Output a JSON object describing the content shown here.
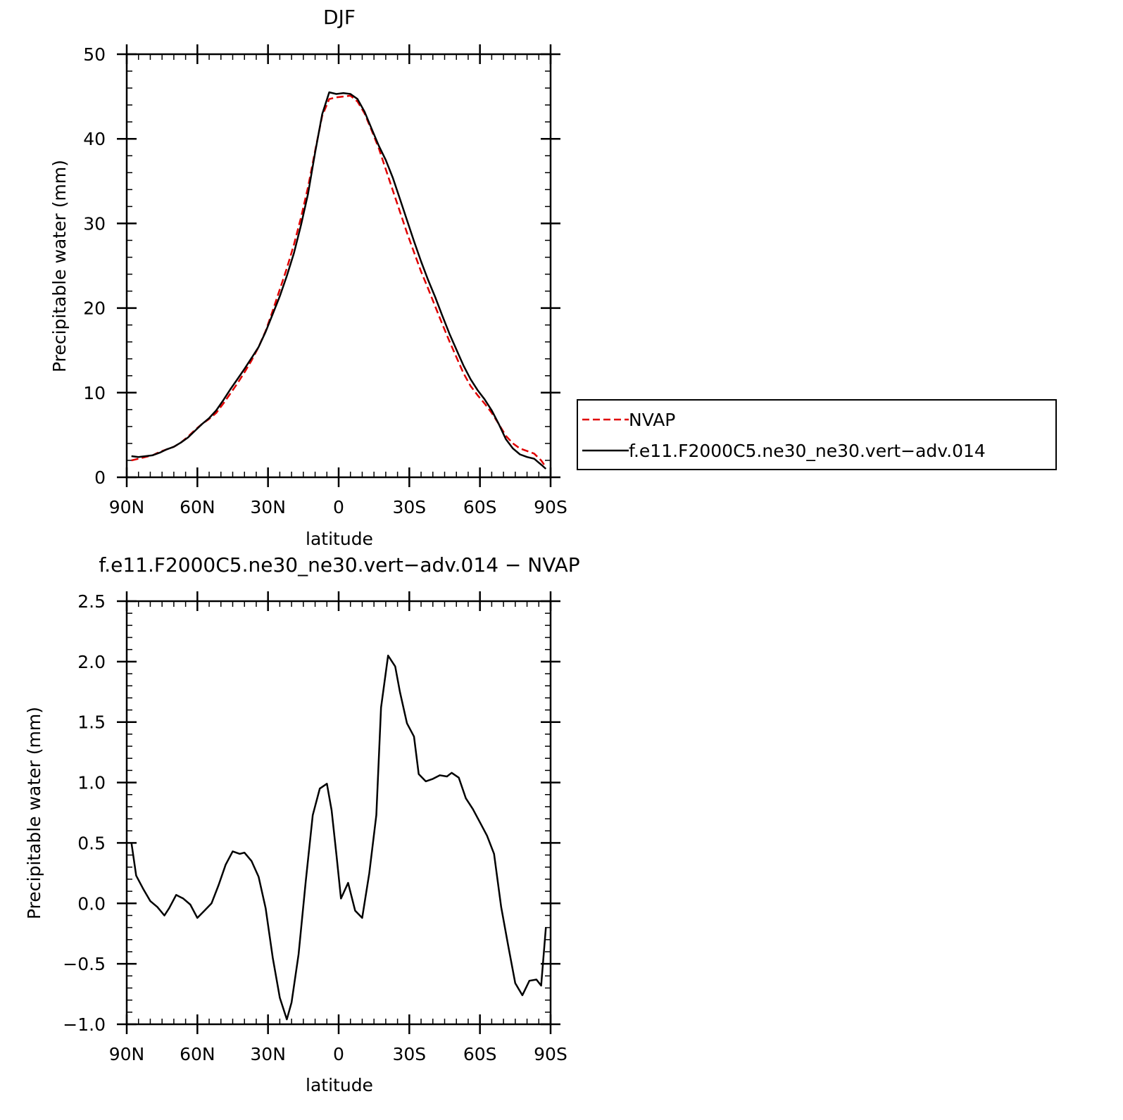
{
  "chart_data": [
    {
      "type": "line",
      "title": "DJF",
      "xlabel": "latitude",
      "ylabel": "Precipitable water (mm)",
      "xlim": [
        -90,
        90
      ],
      "ylim": [
        0,
        50
      ],
      "x_ticks": [
        {
          "value": -90,
          "label": "90N"
        },
        {
          "value": -60,
          "label": "60N"
        },
        {
          "value": -30,
          "label": "30N"
        },
        {
          "value": 0,
          "label": "0"
        },
        {
          "value": 30,
          "label": "30S"
        },
        {
          "value": 60,
          "label": "60S"
        },
        {
          "value": 90,
          "label": "90S"
        }
      ],
      "y_ticks": [
        {
          "value": 0,
          "label": "0"
        },
        {
          "value": 10,
          "label": "10"
        },
        {
          "value": 20,
          "label": "20"
        },
        {
          "value": 30,
          "label": "30"
        },
        {
          "value": 40,
          "label": "40"
        },
        {
          "value": 50,
          "label": "50"
        }
      ],
      "legend": "right",
      "series": [
        {
          "name": "NVAP",
          "color": "#e00000",
          "dash": "dashed",
          "x": [
            -88,
            -85,
            -82,
            -79,
            -76,
            -73,
            -70,
            -67,
            -64,
            -61,
            -58,
            -55,
            -52,
            -49,
            -46,
            -43,
            -40,
            -37,
            -34,
            -31,
            -28,
            -25,
            -22,
            -19,
            -16,
            -13,
            -10,
            -7,
            -4,
            -1,
            2,
            5,
            8,
            11,
            14,
            17,
            20,
            23,
            26,
            29,
            32,
            35,
            38,
            41,
            44,
            47,
            50,
            53,
            56,
            59,
            62,
            65,
            68,
            71,
            74,
            77,
            80,
            83,
            86,
            88
          ],
          "values": [
            2.0,
            2.2,
            2.4,
            2.6,
            3.0,
            3.3,
            3.6,
            4.1,
            4.8,
            5.6,
            6.3,
            6.9,
            7.6,
            8.7,
            9.9,
            11.1,
            12.4,
            13.8,
            15.4,
            17.3,
            19.7,
            22.2,
            24.7,
            27.5,
            30.7,
            34.3,
            38.6,
            42.7,
            44.7,
            44.9,
            45.0,
            45.1,
            44.4,
            43.0,
            41.0,
            38.9,
            36.4,
            33.9,
            31.4,
            28.9,
            26.6,
            24.3,
            22.3,
            20.2,
            18.1,
            16.1,
            14.2,
            12.3,
            10.8,
            9.7,
            8.7,
            7.6,
            6.3,
            4.9,
            4.0,
            3.4,
            3.1,
            2.8,
            2.0,
            1.2
          ]
        },
        {
          "name": "f.e11.F2000C5.ne30_ne30.vert−adv.014",
          "color": "#000000",
          "dash": "solid",
          "x": [
            -88,
            -85,
            -82,
            -79,
            -76,
            -73,
            -70,
            -67,
            -64,
            -61,
            -58,
            -55,
            -52,
            -49,
            -46,
            -43,
            -40,
            -37,
            -34,
            -31,
            -28,
            -25,
            -22,
            -19,
            -16,
            -13,
            -10,
            -7,
            -4,
            -1,
            2,
            5,
            8,
            11,
            14,
            17,
            20,
            23,
            26,
            29,
            32,
            35,
            38,
            41,
            44,
            47,
            50,
            53,
            56,
            59,
            62,
            65,
            68,
            71,
            74,
            77,
            80,
            83,
            86,
            88
          ],
          "values": [
            2.5,
            2.4,
            2.5,
            2.6,
            2.9,
            3.3,
            3.6,
            4.1,
            4.7,
            5.5,
            6.3,
            7.0,
            7.9,
            9.1,
            10.4,
            11.6,
            12.8,
            14.1,
            15.4,
            17.2,
            19.3,
            21.4,
            23.8,
            26.5,
            29.8,
            33.5,
            38.4,
            42.9,
            45.5,
            45.3,
            45.4,
            45.3,
            44.7,
            43.2,
            41.2,
            39.2,
            37.5,
            35.4,
            32.9,
            30.4,
            27.9,
            25.5,
            23.3,
            21.3,
            19.1,
            17.0,
            15.1,
            13.2,
            11.6,
            10.3,
            9.2,
            7.9,
            6.3,
            4.5,
            3.4,
            2.7,
            2.4,
            2.2,
            1.5,
            1.0
          ]
        }
      ]
    },
    {
      "type": "line",
      "title": "f.e11.F2000C5.ne30_ne30.vert−adv.014 − NVAP",
      "xlabel": "latitude",
      "ylabel": "Precipitable water (mm)",
      "xlim": [
        -90,
        90
      ],
      "ylim": [
        -1.0,
        2.5
      ],
      "x_ticks": [
        {
          "value": -90,
          "label": "90N"
        },
        {
          "value": -60,
          "label": "60N"
        },
        {
          "value": -30,
          "label": "30N"
        },
        {
          "value": 0,
          "label": "0"
        },
        {
          "value": 30,
          "label": "30S"
        },
        {
          "value": 60,
          "label": "60S"
        },
        {
          "value": 90,
          "label": "90S"
        }
      ],
      "y_ticks": [
        {
          "value": -1.0,
          "label": "−1.0"
        },
        {
          "value": -0.5,
          "label": "−0.5"
        },
        {
          "value": 0.0,
          "label": "0.0"
        },
        {
          "value": 0.5,
          "label": "0.5"
        },
        {
          "value": 1.0,
          "label": "1.0"
        },
        {
          "value": 1.5,
          "label": "1.5"
        },
        {
          "value": 2.0,
          "label": "2.0"
        },
        {
          "value": 2.5,
          "label": "2.5"
        }
      ],
      "series": [
        {
          "color": "#000000",
          "dash": "solid",
          "x": [
            -88,
            -86,
            -83,
            -80,
            -77,
            -74,
            -72,
            -69,
            -66,
            -63,
            -60,
            -57,
            -54,
            -51,
            -48,
            -45,
            -42,
            -40,
            -37,
            -34,
            -31,
            -28,
            -25,
            -22,
            -20,
            -17,
            -14,
            -11,
            -8,
            -5,
            -3,
            -1,
            1,
            4,
            7,
            10,
            13,
            16,
            18,
            21,
            24,
            26,
            29,
            32,
            34,
            37,
            40,
            43,
            46,
            48,
            51,
            54,
            57,
            60,
            63,
            66,
            69,
            72,
            75,
            78,
            81,
            84,
            86,
            88
          ],
          "values": [
            0.5,
            0.23,
            0.12,
            0.02,
            -0.03,
            -0.1,
            -0.04,
            0.07,
            0.04,
            -0.01,
            -0.12,
            -0.06,
            0.0,
            0.15,
            0.32,
            0.43,
            0.41,
            0.42,
            0.35,
            0.22,
            -0.04,
            -0.45,
            -0.78,
            -0.96,
            -0.82,
            -0.42,
            0.18,
            0.73,
            0.95,
            0.99,
            0.77,
            0.41,
            0.04,
            0.17,
            -0.06,
            -0.12,
            0.25,
            0.73,
            1.62,
            2.05,
            1.96,
            1.75,
            1.49,
            1.38,
            1.07,
            1.01,
            1.03,
            1.06,
            1.05,
            1.08,
            1.04,
            0.87,
            0.78,
            0.67,
            0.56,
            0.41,
            -0.03,
            -0.35,
            -0.66,
            -0.76,
            -0.64,
            -0.63,
            -0.68,
            -0.2
          ]
        }
      ]
    }
  ]
}
